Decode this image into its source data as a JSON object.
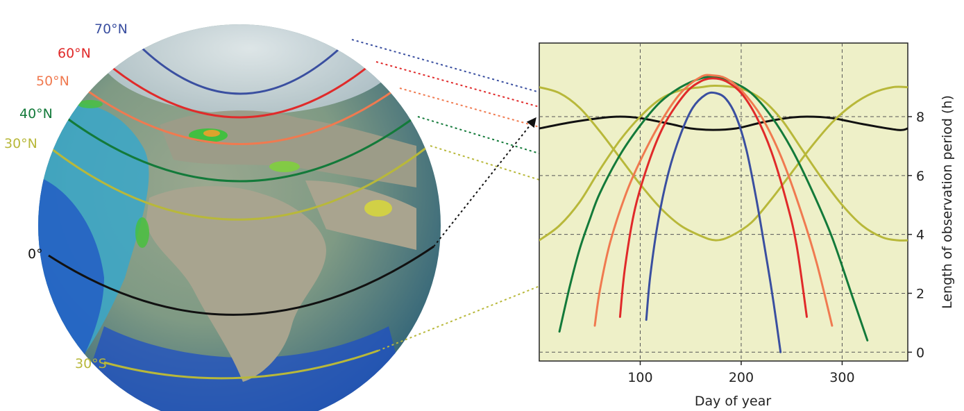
{
  "globe": {
    "latitudes": [
      {
        "label": "70°N",
        "color": "#3a4fa0",
        "series": "70°N"
      },
      {
        "label": "60°N",
        "color": "#e02a2a",
        "series": "60°N"
      },
      {
        "label": "50°N",
        "color": "#f07a50",
        "series": "50°N"
      },
      {
        "label": "40°N",
        "color": "#137a3a",
        "series": "40°N"
      },
      {
        "label": "30°N",
        "color": "#b8b83a",
        "series": "30°N"
      },
      {
        "label": "0°",
        "color": "#111111",
        "series": "0°"
      },
      {
        "label": "30°S",
        "color": "#b8b83a",
        "series": "30°S"
      }
    ]
  },
  "chart_data": {
    "type": "line",
    "title": "",
    "xlabel": "Day of year",
    "ylabel": "Length of observation period (h)",
    "xlim": [
      0,
      365
    ],
    "ylim": [
      -0.3,
      10.5
    ],
    "xticks": [
      100,
      200,
      300
    ],
    "yticks": [
      0,
      2,
      4,
      6,
      8
    ],
    "grid": true,
    "background": "#eef0c8",
    "series": [
      {
        "name": "0°",
        "color": "#111111",
        "x": [
          0,
          30,
          60,
          80,
          100,
          130,
          150,
          172,
          195,
          220,
          245,
          265,
          290,
          320,
          355,
          365
        ],
        "y": [
          7.6,
          7.8,
          7.95,
          8.0,
          7.95,
          7.75,
          7.6,
          7.55,
          7.6,
          7.8,
          7.95,
          8.0,
          7.95,
          7.75,
          7.55,
          7.6
        ]
      },
      {
        "name": "30°N",
        "color": "#b8b83a",
        "x": [
          0,
          20,
          40,
          60,
          80,
          100,
          120,
          140,
          160,
          175,
          200,
          220,
          240,
          260,
          280,
          300,
          320,
          340,
          355,
          365
        ],
        "y": [
          3.8,
          4.3,
          5.1,
          6.2,
          7.2,
          8.0,
          8.6,
          8.9,
          9.0,
          9.05,
          8.95,
          8.6,
          7.9,
          6.9,
          5.9,
          5.0,
          4.3,
          3.9,
          3.8,
          3.8
        ]
      },
      {
        "name": "30°S",
        "color": "#b8b83a",
        "x": [
          0,
          20,
          40,
          60,
          80,
          100,
          120,
          140,
          160,
          175,
          190,
          210,
          230,
          250,
          270,
          290,
          310,
          330,
          350,
          365
        ],
        "y": [
          9.0,
          8.8,
          8.3,
          7.5,
          6.6,
          5.7,
          4.9,
          4.3,
          3.95,
          3.8,
          3.95,
          4.4,
          5.2,
          6.1,
          7.0,
          7.8,
          8.4,
          8.8,
          9.0,
          9.0
        ]
      },
      {
        "name": "40°N",
        "color": "#137a3a",
        "x": [
          20,
          30,
          40,
          50,
          60,
          80,
          100,
          120,
          140,
          160,
          175,
          190,
          210,
          230,
          250,
          270,
          290,
          310,
          325
        ],
        "y": [
          0.7,
          2.2,
          3.5,
          4.5,
          5.4,
          6.7,
          7.7,
          8.5,
          9.0,
          9.3,
          9.35,
          9.2,
          8.8,
          8.0,
          6.9,
          5.5,
          3.9,
          1.9,
          0.4
        ]
      },
      {
        "name": "50°N",
        "color": "#f07a50",
        "x": [
          55,
          60,
          70,
          85,
          100,
          120,
          140,
          160,
          172,
          185,
          200,
          220,
          240,
          260,
          275,
          290
        ],
        "y": [
          0.9,
          2.1,
          3.7,
          5.3,
          6.5,
          7.8,
          8.8,
          9.35,
          9.4,
          9.3,
          8.9,
          8.0,
          6.6,
          4.7,
          3.0,
          0.9
        ]
      },
      {
        "name": "60°N",
        "color": "#e02a2a",
        "x": [
          80,
          85,
          95,
          110,
          125,
          145,
          160,
          172,
          185,
          200,
          215,
          230,
          245,
          255,
          265
        ],
        "y": [
          1.2,
          2.9,
          4.9,
          6.6,
          7.8,
          8.8,
          9.2,
          9.3,
          9.2,
          8.8,
          8.0,
          6.8,
          5.1,
          3.6,
          1.2
        ]
      },
      {
        "name": "70°N",
        "color": "#3a4fa0",
        "x": [
          106,
          110,
          118,
          128,
          140,
          152,
          165,
          175,
          185,
          195,
          205,
          215,
          225,
          232,
          239
        ],
        "y": [
          1.1,
          2.6,
          4.5,
          6.1,
          7.4,
          8.3,
          8.75,
          8.8,
          8.6,
          8.0,
          6.9,
          5.2,
          3.2,
          1.7,
          0.0
        ]
      }
    ]
  }
}
